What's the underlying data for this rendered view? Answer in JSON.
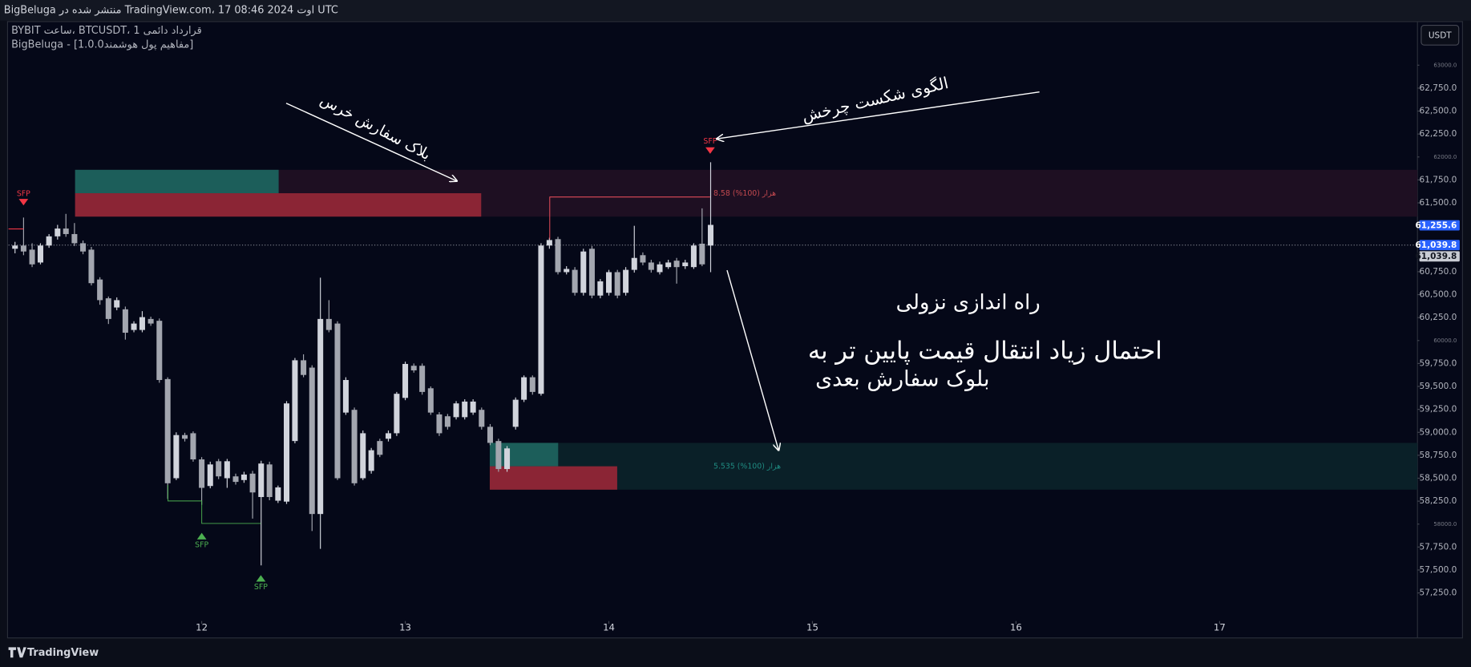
{
  "header": "BigBeluga منتشر شده در TradingView.com، 17 اوت 2024 08:46 UTC",
  "legend": [
    "BYBIT ساعت، BTCUSDT، 1 قرارداد دائمی",
    "BigBeluga - [1.0.0مفاهیم پول هوشمند]"
  ],
  "currency_button": "USDT",
  "footer_brand": "TradingView",
  "chart_data": {
    "type": "candlestick",
    "up_color": "#d1d4dc",
    "down_color": "#a3a6af",
    "xlim": [
      11.051,
      17.972
    ],
    "xticks": [
      12,
      13,
      14,
      15,
      16,
      17
    ],
    "ylim": [
      56760,
      63475
    ],
    "yticks": [
      {
        "value": 57250,
        "label": "57,250.0"
      },
      {
        "value": 57500,
        "label": "57,500.0"
      },
      {
        "value": 57750,
        "label": "57,750.0"
      },
      {
        "value": 58250,
        "label": "58,250.0"
      },
      {
        "value": 58500,
        "label": "58,500.0"
      },
      {
        "value": 58750,
        "label": "58,750.0"
      },
      {
        "value": 59000,
        "label": "59,000.0"
      },
      {
        "value": 59250,
        "label": "59,250.0"
      },
      {
        "value": 59500,
        "label": "59,500.0"
      },
      {
        "value": 59750,
        "label": "59,750.0"
      },
      {
        "value": 60250,
        "label": "60,250.0"
      },
      {
        "value": 60500,
        "label": "60,500.0"
      },
      {
        "value": 60750,
        "label": "60,750.0"
      },
      {
        "value": 61500,
        "label": "61,500.0"
      },
      {
        "value": 61750,
        "label": "61,750.0"
      },
      {
        "value": 62250,
        "label": "62,250.0"
      },
      {
        "value": 62500,
        "label": "62,500.0"
      },
      {
        "value": 62750,
        "label": "62,750.0"
      }
    ],
    "yticks_minor": [
      {
        "value": 58000,
        "label": "58000.0"
      },
      {
        "value": 60000,
        "label": "60000.0"
      },
      {
        "value": 62000,
        "label": "62000.0"
      },
      {
        "value": 63000,
        "label": "63000.0"
      }
    ],
    "x": [
      11.083,
      11.125,
      11.167,
      11.208,
      11.25,
      11.292,
      11.333,
      11.375,
      11.417,
      11.458,
      11.5,
      11.542,
      11.583,
      11.625,
      11.667,
      11.708,
      11.75,
      11.792,
      11.833,
      11.875,
      11.917,
      11.958,
      12,
      12.042,
      12.083,
      12.125,
      12.167,
      12.208,
      12.25,
      12.292,
      12.333,
      12.375,
      12.417,
      12.458,
      12.5,
      12.542,
      12.583,
      12.625,
      12.667,
      12.708,
      12.75,
      12.792,
      12.833,
      12.875,
      12.917,
      12.958,
      13,
      13.042,
      13.083,
      13.125,
      13.167,
      13.208,
      13.25,
      13.292,
      13.333,
      13.375,
      13.417,
      13.458,
      13.5,
      13.542,
      13.583,
      13.625,
      13.667,
      13.708,
      13.75,
      13.792,
      13.833,
      13.875,
      13.917,
      13.958,
      14,
      14.042,
      14.083,
      14.125,
      14.167,
      14.208,
      14.25,
      14.292,
      14.333,
      14.375,
      14.417,
      14.458,
      14.5
    ],
    "open": [
      61000,
      61035,
      60990,
      60850,
      61035,
      61135,
      61220,
      61160,
      61060,
      60990,
      60665,
      60460,
      60360,
      60340,
      60115,
      60115,
      60235,
      60215,
      59580,
      58500,
      58970,
      58990,
      58705,
      58415,
      58685,
      58500,
      58520,
      58480,
      58550,
      58295,
      58650,
      58255,
      58245,
      58905,
      59785,
      59705,
      58110,
      60235,
      60185,
      59215,
      59245,
      58500,
      58580,
      58905,
      58930,
      58990,
      59375,
      59725,
      59725,
      59480,
      59195,
      59175,
      59165,
      59165,
      59215,
      59245,
      59060,
      58905,
      58600,
      59060,
      59355,
      59600,
      59420,
      61035,
      61105,
      60745,
      60770,
      60520,
      61000,
      60490,
      60520,
      60745,
      60520,
      60770,
      60930,
      60850,
      60745,
      60800,
      60870,
      60810,
      60800,
      61055,
      61035
    ],
    "high": [
      61075,
      61340,
      61060,
      61060,
      61160,
      61260,
      61380,
      61280,
      61090,
      61020,
      60690,
      60480,
      60470,
      60370,
      60210,
      60320,
      60260,
      60240,
      59600,
      59000,
      58995,
      59010,
      58730,
      58680,
      58710,
      58710,
      58550,
      58570,
      58580,
      58690,
      58680,
      58420,
      59340,
      59810,
      59850,
      59730,
      60685,
      60440,
      60210,
      59600,
      59270,
      59020,
      58830,
      58930,
      59020,
      59440,
      59770,
      59750,
      59750,
      59500,
      59220,
      59200,
      59340,
      59360,
      59360,
      59270,
      59090,
      58930,
      58850,
      59380,
      59620,
      59620,
      61060,
      61120,
      61130,
      60810,
      60800,
      61000,
      61030,
      60670,
      60770,
      60770,
      60800,
      61250,
      60960,
      60880,
      60860,
      60880,
      60900,
      60880,
      61060,
      61440,
      61943
    ],
    "low": [
      60950,
      60930,
      60800,
      60830,
      61010,
      61100,
      61130,
      61030,
      60940,
      60600,
      60390,
      60180,
      60330,
      60010,
      60090,
      60090,
      60160,
      59540,
      58275,
      58480,
      58900,
      58680,
      58210,
      58390,
      58490,
      58395,
      58430,
      58450,
      58060,
      57550,
      58260,
      58230,
      58220,
      58880,
      59600,
      57925,
      57730,
      60090,
      58480,
      59190,
      58420,
      58480,
      58550,
      58730,
      58900,
      58960,
      59350,
      59650,
      59410,
      59190,
      58960,
      59030,
      59140,
      59140,
      59190,
      59030,
      58860,
      58570,
      58570,
      59030,
      59330,
      59410,
      59400,
      61000,
      60720,
      60720,
      60490,
      60490,
      60460,
      60460,
      60490,
      60460,
      60490,
      60740,
      60820,
      60740,
      60720,
      60780,
      60620,
      60780,
      60780,
      60810,
      60745
    ],
    "close": [
      61035,
      60970,
      60830,
      61035,
      61135,
      61220,
      61160,
      61060,
      60970,
      60625,
      60440,
      60235,
      60440,
      60085,
      60185,
      60255,
      60185,
      59570,
      58445,
      58970,
      58930,
      58705,
      58395,
      58650,
      58520,
      58685,
      58460,
      58540,
      58345,
      58660,
      58295,
      58400,
      59315,
      59785,
      59625,
      58110,
      60235,
      60115,
      58500,
      59570,
      58445,
      58990,
      58805,
      58755,
      58990,
      59420,
      59745,
      59675,
      59440,
      59215,
      58990,
      59060,
      59315,
      59335,
      59335,
      59060,
      58885,
      58600,
      58825,
      59355,
      59600,
      59440,
      61035,
      61095,
      60745,
      60780,
      60520,
      60970,
      60490,
      60645,
      60745,
      60490,
      60770,
      60900,
      60850,
      60770,
      60830,
      60850,
      60800,
      60850,
      61035,
      60830,
      61260
    ],
    "zones": [
      {
        "x0": 11.378,
        "x1": 17.972,
        "top": 61860,
        "bottom": 61350,
        "color": "#1e0f22"
      },
      {
        "x0": 11.378,
        "x1": 12.378,
        "top": 61860,
        "bottom": 61605,
        "color": "#1c5e5a"
      },
      {
        "x0": 11.378,
        "x1": 13.373,
        "top": 61605,
        "bottom": 61350,
        "color": "#8b2535",
        "label": "8.58 هزار (100%)",
        "label_color": "#c2494f"
      },
      {
        "x0": 13.415,
        "x1": 17.972,
        "top": 58885,
        "bottom": 58375,
        "color": "#0a2028"
      },
      {
        "x0": 13.415,
        "x1": 13.751,
        "top": 58885,
        "bottom": 58630,
        "color": "#1c5e5a"
      },
      {
        "x0": 13.415,
        "x1": 14.041,
        "top": 58630,
        "bottom": 58375,
        "color": "#8b2535",
        "label": "5.535 هزار (100%)",
        "label_color": "#1f8a80"
      }
    ],
    "price_tags": [
      {
        "value": 61255.6,
        "label": "61,255.6",
        "color": "#2962ff"
      },
      {
        "value": 61039.8,
        "label": "61,039.8",
        "color": "#2962ff"
      },
      {
        "value": 61039.8,
        "label": "61,039.8",
        "color": "#c9ccd4"
      }
    ],
    "sfp_labels": [
      "SFP",
      "SFP",
      "SFP",
      "SFP"
    ],
    "annotations": [
      "بلاک سفارش خرس",
      "الگوی شکست چرخش",
      "راه اندازی نزولی",
      "احتمال زیاد انتقال قیمت پایین تر به",
      "بلوک سفارش بعدی"
    ]
  }
}
